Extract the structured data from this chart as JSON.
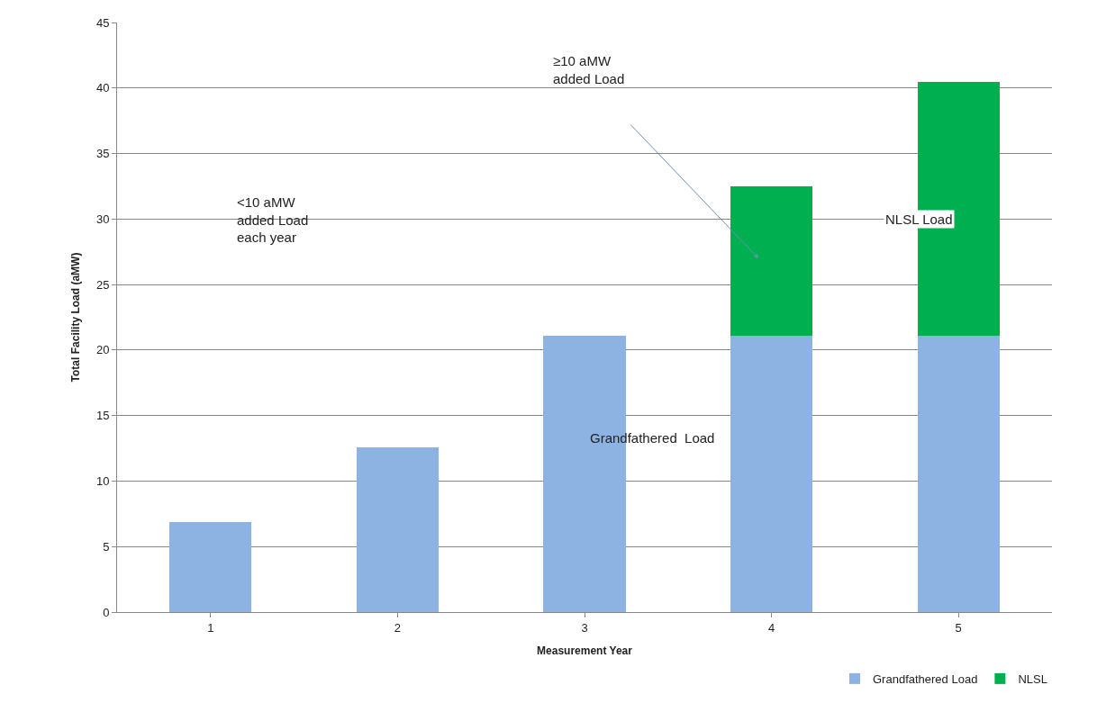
{
  "chart_data": {
    "type": "bar",
    "stacked": true,
    "xlabel": "Measurement Year",
    "ylabel": "Total Facility Load (aMW)",
    "categories": [
      "1",
      "2",
      "3",
      "4",
      "5"
    ],
    "series": [
      {
        "name": "Grandfathered Load",
        "color": "#8db3e2",
        "values": [
          6.9,
          12.6,
          21.1,
          21.1,
          21.1
        ]
      },
      {
        "name": "NLSL",
        "color": "#00b050",
        "values": [
          null,
          null,
          null,
          11.4,
          19.4
        ]
      }
    ],
    "ylim": [
      0,
      45
    ],
    "yticks": [
      0,
      5,
      10,
      15,
      20,
      25,
      30,
      35,
      40,
      45
    ],
    "grid": "y",
    "legend": "bottom right",
    "annotations": [
      "<10 aMW\nadded Load\neach year",
      "≥10 aMW\nadded Load",
      "NLSL Load",
      "Grandfathered  Load"
    ]
  }
}
